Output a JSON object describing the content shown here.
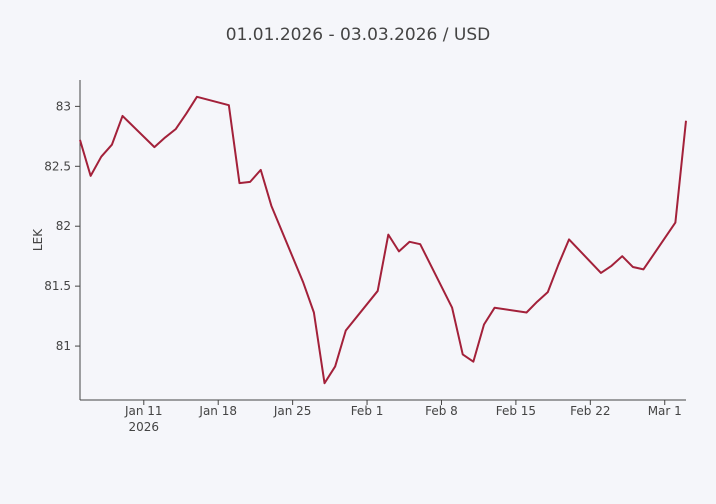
{
  "chart_data": {
    "type": "line",
    "title": "01.01.2026 - 03.03.2026 / USD",
    "y_label": "LEK",
    "x_year_label": "2026",
    "x": [
      "2026-01-05",
      "2026-01-06",
      "2026-01-07",
      "2026-01-08",
      "2026-01-09",
      "2026-01-12",
      "2026-01-13",
      "2026-01-14",
      "2026-01-15",
      "2026-01-16",
      "2026-01-19",
      "2026-01-20",
      "2026-01-21",
      "2026-01-22",
      "2026-01-23",
      "2026-01-26",
      "2026-01-27",
      "2026-01-28",
      "2026-01-29",
      "2026-01-30",
      "2026-02-02",
      "2026-02-03",
      "2026-02-04",
      "2026-02-05",
      "2026-02-06",
      "2026-02-09",
      "2026-02-10",
      "2026-02-11",
      "2026-02-12",
      "2026-02-13",
      "2026-02-16",
      "2026-02-17",
      "2026-02-18",
      "2026-02-19",
      "2026-02-20",
      "2026-02-23",
      "2026-02-24",
      "2026-02-25",
      "2026-02-26",
      "2026-02-27",
      "2026-03-02",
      "2026-03-03"
    ],
    "series": [
      {
        "name": "USD",
        "color": "#a3213a",
        "values": [
          82.72,
          82.42,
          82.58,
          82.68,
          82.92,
          82.66,
          82.74,
          82.81,
          82.94,
          83.08,
          83.01,
          82.36,
          82.37,
          82.47,
          82.17,
          81.53,
          81.28,
          80.69,
          80.83,
          81.13,
          81.46,
          81.93,
          81.79,
          81.87,
          81.85,
          81.32,
          80.93,
          80.87,
          81.18,
          81.32,
          81.28,
          81.37,
          81.45,
          81.68,
          81.89,
          81.61,
          81.67,
          81.75,
          81.66,
          81.64,
          82.03,
          82.88
        ]
      }
    ],
    "xlim": [
      "2026-01-05",
      "2026-03-03"
    ],
    "xticks": [
      {
        "value": "2026-01-11",
        "label": "Jan 11"
      },
      {
        "value": "2026-01-18",
        "label": "Jan 18"
      },
      {
        "value": "2026-01-25",
        "label": "Jan 25"
      },
      {
        "value": "2026-02-01",
        "label": "Feb 1"
      },
      {
        "value": "2026-02-08",
        "label": "Feb 8"
      },
      {
        "value": "2026-02-15",
        "label": "Feb 15"
      },
      {
        "value": "2026-02-22",
        "label": "Feb 22"
      },
      {
        "value": "2026-03-01",
        "label": "Mar 1"
      }
    ],
    "ylim": [
      80.55,
      83.22
    ],
    "yticks": [
      81,
      81.5,
      82,
      82.5,
      83
    ],
    "grid": false
  }
}
